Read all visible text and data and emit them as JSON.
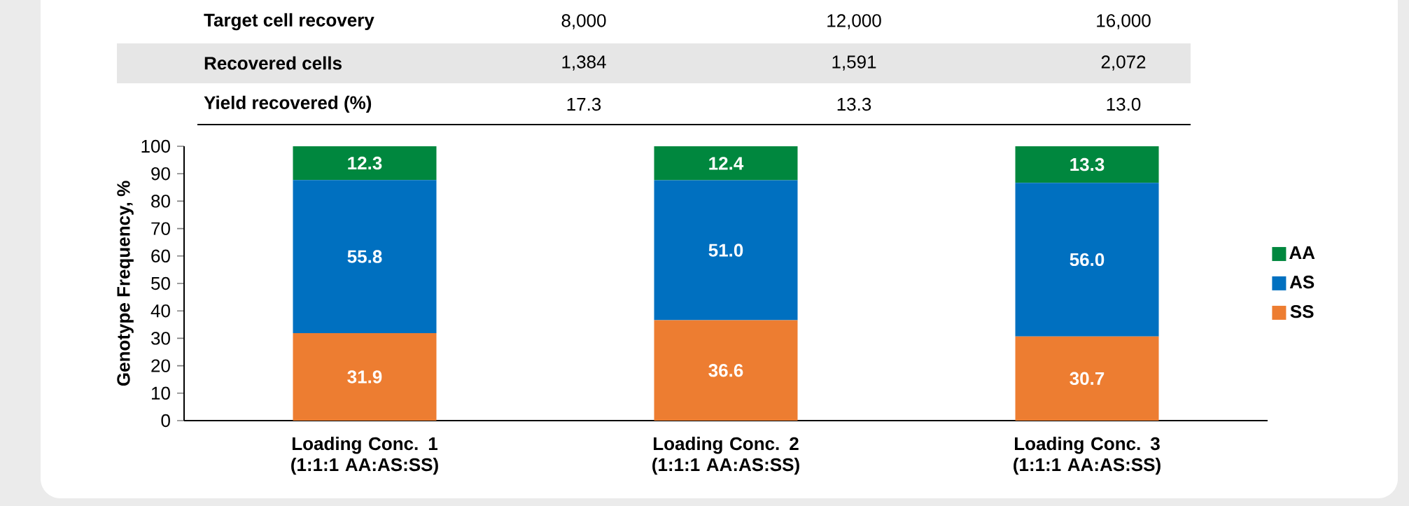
{
  "chart_data": {
    "type": "bar",
    "stacked": true,
    "ylabel": "Genotype Frequency, %",
    "categories": [
      "Loading Conc. 1 (1:1:1 AA:AS:SS)",
      "Loading Conc. 2 (1:1:1 AA:AS:SS)",
      "Loading Conc. 3 (1:1:1 AA:AS:SS)"
    ],
    "series": [
      {
        "name": "SS",
        "color": "#ed7d31",
        "values": [
          31.9,
          36.6,
          30.7
        ],
        "value_labels": [
          "31.9",
          "36.6",
          "30.7"
        ]
      },
      {
        "name": "AS",
        "color": "#0070c0",
        "values": [
          55.8,
          51.0,
          56.0
        ],
        "value_labels": [
          "55.8",
          "51.0",
          "56.0"
        ]
      },
      {
        "name": "AA",
        "color": "#00873e",
        "values": [
          12.3,
          12.4,
          13.3
        ],
        "value_labels": [
          "12.3",
          "12.4",
          "13.3"
        ]
      }
    ],
    "ylim": [
      0,
      100
    ],
    "yticks": [
      0,
      10,
      20,
      30,
      40,
      50,
      60,
      70,
      80,
      90,
      100
    ],
    "legend": "right",
    "annotations": [
      "Target cell recovery",
      "8,000",
      "12,000",
      "16,000",
      "Recovered cells",
      "1,384",
      "1,591",
      "2,072",
      "Yield recovered (%)",
      "17.3",
      "13.3",
      "13.0"
    ]
  }
}
